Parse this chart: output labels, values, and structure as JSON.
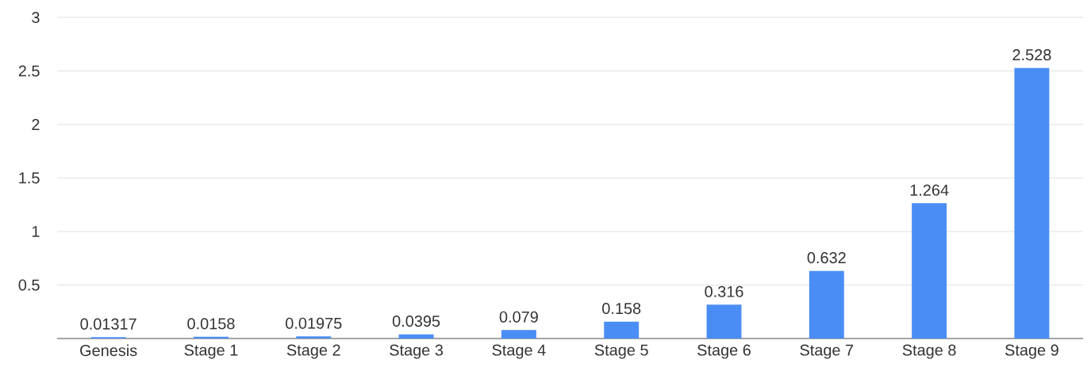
{
  "chart_data": {
    "type": "bar",
    "categories": [
      "Genesis",
      "Stage 1",
      "Stage 2",
      "Stage 3",
      "Stage 4",
      "Stage 5",
      "Stage 6",
      "Stage 7",
      "Stage 8",
      "Stage 9"
    ],
    "values": [
      0.01317,
      0.0158,
      0.01975,
      0.0395,
      0.079,
      0.158,
      0.316,
      0.632,
      1.264,
      2.528
    ],
    "color": "#4a8ef5",
    "ylim": [
      0,
      3
    ],
    "yticks": [
      0.5,
      1,
      1.5,
      2,
      2.5,
      3
    ],
    "grid": "y",
    "data_labels": true
  }
}
